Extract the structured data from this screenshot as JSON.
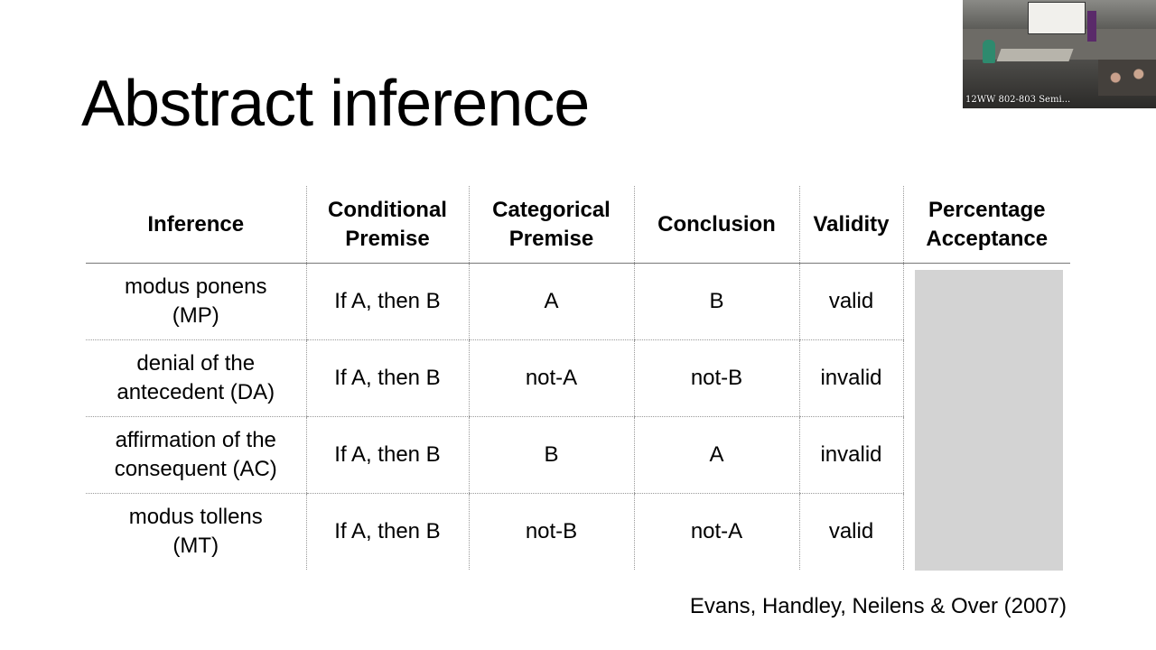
{
  "slide": {
    "title": "Abstract inference",
    "citation": "Evans, Handley, Neilens & Over (2007)"
  },
  "table": {
    "headers": {
      "inference": "Inference",
      "conditional_premise": "Conditional Premise",
      "categorical_premise": "Categorical Premise",
      "conclusion": "Conclusion",
      "validity": "Validity",
      "percentage_acceptance": "Percentage Acceptance"
    },
    "rows": [
      {
        "inference_line1": "modus ponens",
        "inference_line2": "(MP)",
        "conditional_premise": "If A, then B",
        "categorical_premise": "A",
        "conclusion": "B",
        "validity": "valid"
      },
      {
        "inference_line1": "denial of the",
        "inference_line2": "antecedent (DA)",
        "conditional_premise": "If A, then B",
        "categorical_premise": "not-A",
        "conclusion": "not-B",
        "validity": "invalid"
      },
      {
        "inference_line1": "affirmation of the",
        "inference_line2": "consequent (AC)",
        "conditional_premise": "If A, then B",
        "categorical_premise": "B",
        "conclusion": "A",
        "validity": "invalid"
      },
      {
        "inference_line1": "modus tollens",
        "inference_line2": "(MT)",
        "conditional_premise": "If A, then B",
        "categorical_premise": "not-B",
        "conclusion": "not-A",
        "validity": "valid"
      }
    ]
  },
  "video": {
    "label": "12WW 802-803 Semi..."
  },
  "colors": {
    "background": "#ffffff",
    "text": "#000000",
    "answer_cover": "#d3d3d3"
  }
}
